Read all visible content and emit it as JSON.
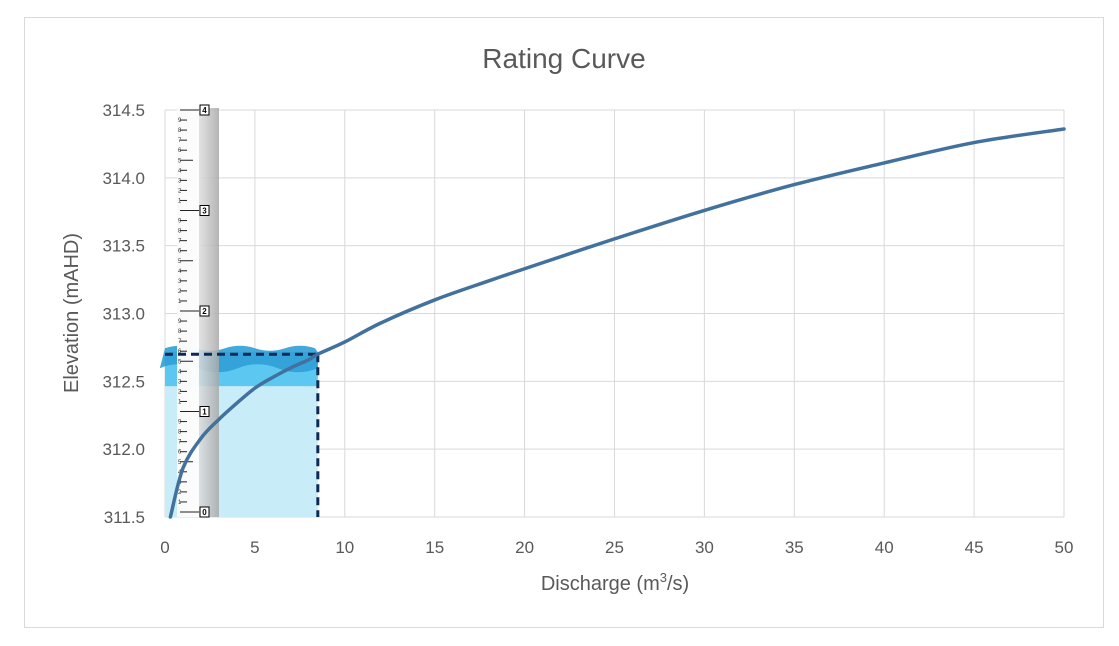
{
  "chart_data": {
    "type": "line",
    "title": "Rating Curve",
    "xlabel_text": "Discharge (m",
    "xlabel_sup": "3",
    "xlabel_tail": "/s)",
    "ylabel": "Elevation (mAHD)",
    "xlim": [
      0,
      50
    ],
    "ylim": [
      311.5,
      314.5
    ],
    "x_ticks": [
      0,
      5,
      10,
      15,
      20,
      25,
      30,
      35,
      40,
      45,
      50
    ],
    "y_ticks": [
      "311.5",
      "312.0",
      "312.5",
      "313.0",
      "313.5",
      "314.0",
      "314.5"
    ],
    "grid": true,
    "series": [
      {
        "color": "#41719c",
        "x": [
          0.3,
          1,
          2,
          3,
          4,
          5,
          6,
          7,
          8,
          8.5,
          10,
          12,
          15,
          18,
          20,
          25,
          30,
          35,
          40,
          45,
          50
        ],
        "y": [
          311.5,
          311.86,
          312.08,
          312.22,
          312.34,
          312.45,
          312.53,
          312.6,
          312.66,
          312.7,
          312.79,
          312.93,
          313.1,
          313.24,
          313.33,
          313.55,
          313.76,
          313.95,
          314.11,
          314.26,
          314.36
        ]
      }
    ],
    "marker": {
      "x": 8.5,
      "y": 312.7,
      "color": "#0b2a55"
    },
    "water": {
      "x_to": 8.5,
      "surface": 312.7,
      "colors": [
        "#2f9fd6",
        "#5cc8f2",
        "#c9ecf9"
      ]
    },
    "staff_gauge": {
      "labels": [
        "0",
        "1",
        "2",
        "3",
        "4"
      ]
    }
  }
}
